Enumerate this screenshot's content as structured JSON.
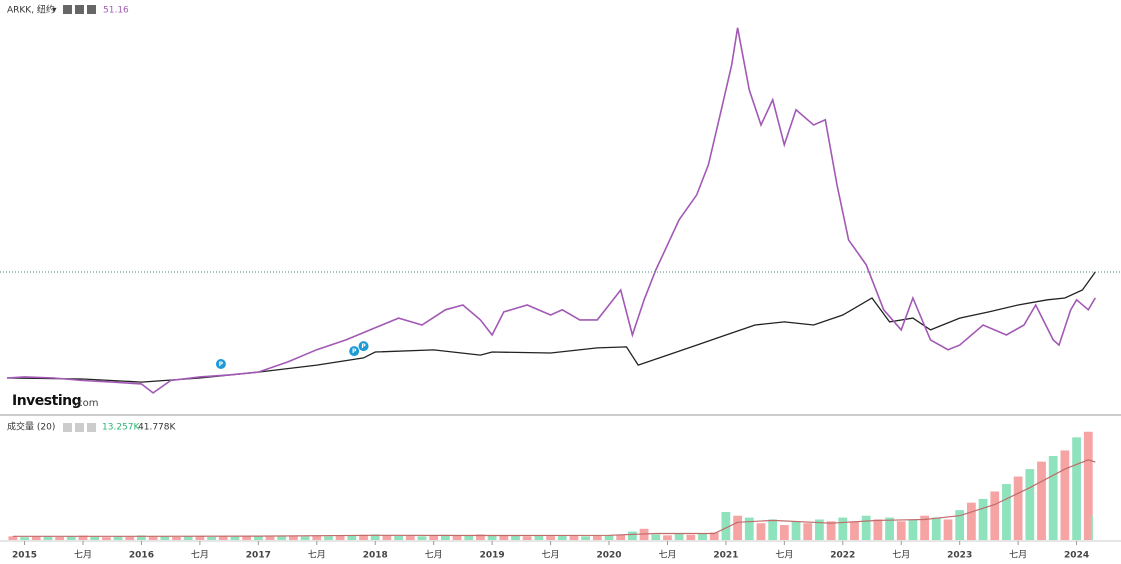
{
  "header": {
    "ticker": "ARKK, 纽约",
    "price": "51.16"
  },
  "logo": {
    "brand": "Investing",
    "suffix": ".com"
  },
  "volume_header": {
    "title": "成交量 (20)",
    "current": "13.257K",
    "average": "41.778K"
  },
  "chart_data": [
    {
      "type": "line",
      "xlim": [
        2014.79,
        2024.38
      ],
      "ylim": [
        5.6,
        167
      ],
      "xticks": [
        2015,
        {
          "value": 2015.5,
          "label": "七月"
        },
        2016,
        {
          "value": 2016.5,
          "label": "七月"
        },
        2017,
        {
          "value": 2017.5,
          "label": "七月"
        },
        2018,
        {
          "value": 2018.5,
          "label": "七月"
        },
        2019,
        {
          "value": 2019.5,
          "label": "七月"
        },
        2020,
        {
          "value": 2020.5,
          "label": "七月"
        },
        2021,
        {
          "value": 2021.5,
          "label": "七月"
        },
        2022,
        {
          "value": 2022.5,
          "label": "七月"
        },
        2023,
        {
          "value": 2023.5,
          "label": "七月"
        },
        2024
      ],
      "last_price_line": true,
      "series": [
        {
          "name": "main",
          "color": "#222222",
          "x": [
            2014.85,
            2015.5,
            2016.0,
            2016.5,
            2017.0,
            2017.5,
            2017.9,
            2018.0,
            2018.5,
            2018.9,
            2019.0,
            2019.5,
            2019.9,
            2020.15,
            2020.25,
            2020.5,
            2020.75,
            2021.0,
            2021.25,
            2021.5,
            2021.75,
            2022.0,
            2022.25,
            2022.4,
            2022.6,
            2022.75,
            2023.0,
            2023.25,
            2023.5,
            2023.75,
            2023.9,
            2024.05,
            2024.16
          ],
          "values": [
            20,
            19.6,
            18.4,
            20,
            22.3,
            25,
            27.8,
            30.1,
            30.9,
            28.9,
            30.1,
            29.7,
            31.7,
            32.1,
            25,
            28.9,
            32.8,
            36.7,
            40.6,
            41.8,
            40.6,
            44.5,
            51.1,
            41.8,
            43.3,
            38.7,
            43.3,
            45.7,
            48.4,
            50.4,
            51.1,
            54.2,
            61.2
          ]
        },
        {
          "name": "ARKK",
          "color": "#a259b5",
          "x": [
            2014.85,
            2015.0,
            2015.25,
            2015.5,
            2015.75,
            2016.0,
            2016.1,
            2016.25,
            2016.5,
            2016.75,
            2017.0,
            2017.25,
            2017.5,
            2017.75,
            2018.0,
            2018.2,
            2018.4,
            2018.6,
            2018.75,
            2018.9,
            2019.0,
            2019.1,
            2019.3,
            2019.5,
            2019.6,
            2019.75,
            2019.9,
            2020.0,
            2020.1,
            2020.2,
            2020.3,
            2020.4,
            2020.5,
            2020.6,
            2020.75,
            2020.85,
            2020.95,
            2021.05,
            2021.1,
            2021.2,
            2021.3,
            2021.4,
            2021.5,
            2021.6,
            2021.75,
            2021.85,
            2021.95,
            2022.05,
            2022.2,
            2022.35,
            2022.5,
            2022.6,
            2022.75,
            2022.9,
            2023.0,
            2023.2,
            2023.4,
            2023.55,
            2023.65,
            2023.8,
            2023.85,
            2023.95,
            2024.0,
            2024.1,
            2024.16
          ],
          "values": [
            20,
            20.4,
            20,
            19,
            18.4,
            17.7,
            14.2,
            19,
            20.4,
            21.2,
            22.3,
            26.2,
            31,
            34.8,
            39.5,
            43.3,
            40.6,
            46.5,
            48.4,
            42.6,
            36.7,
            45.7,
            48.4,
            44.5,
            46.5,
            42.6,
            42.6,
            48.4,
            54.2,
            36.7,
            50.4,
            62,
            71.8,
            81.5,
            91.2,
            102.9,
            122.3,
            141.8,
            156.2,
            132,
            118.4,
            128.2,
            110.7,
            124.3,
            118.4,
            120.4,
            95.1,
            73.7,
            64,
            46.5,
            38.7,
            51.1,
            34.8,
            31,
            32.8,
            40.6,
            36.7,
            40.6,
            48.4,
            34.8,
            32.8,
            46.5,
            50.4,
            46.5,
            51.16
          ]
        }
      ],
      "events": [
        {
          "x": 2016.68,
          "label": "P"
        },
        {
          "x": 2017.82,
          "label": "P"
        },
        {
          "x": 2017.9,
          "label": "P"
        }
      ],
      "event_color": "#1e9bd7"
    },
    {
      "type": "volume",
      "xlim": [
        2014.79,
        2024.38
      ],
      "ylim": [
        0,
        64.3
      ],
      "colors": [
        "#f5a3a3",
        "#8fe3bc"
      ],
      "x": [
        2014.9,
        2015.0,
        2015.1,
        2015.2,
        2015.3,
        2015.4,
        2015.5,
        2015.6,
        2015.7,
        2015.8,
        2015.9,
        2016.0,
        2016.1,
        2016.2,
        2016.3,
        2016.4,
        2016.5,
        2016.6,
        2016.7,
        2016.8,
        2016.9,
        2017.0,
        2017.1,
        2017.2,
        2017.3,
        2017.4,
        2017.5,
        2017.6,
        2017.7,
        2017.8,
        2017.9,
        2018.0,
        2018.1,
        2018.2,
        2018.3,
        2018.4,
        2018.5,
        2018.6,
        2018.7,
        2018.8,
        2018.9,
        2019.0,
        2019.1,
        2019.2,
        2019.3,
        2019.4,
        2019.5,
        2019.6,
        2019.7,
        2019.8,
        2019.9,
        2020.0,
        2020.1,
        2020.2,
        2020.3,
        2020.4,
        2020.5,
        2020.6,
        2020.7,
        2020.8,
        2020.9,
        2021.0,
        2021.1,
        2021.2,
        2021.3,
        2021.4,
        2021.5,
        2021.6,
        2021.7,
        2021.8,
        2021.9,
        2022.0,
        2022.1,
        2022.2,
        2022.3,
        2022.4,
        2022.5,
        2022.6,
        2022.7,
        2022.8,
        2022.9,
        2023.0,
        2023.1,
        2023.2,
        2023.3,
        2023.4,
        2023.5,
        2023.6,
        2023.7,
        2023.8,
        2023.9,
        2024.0,
        2024.1,
        2024.16
      ],
      "values": [
        2,
        1.5,
        1.8,
        2.2,
        1.6,
        2,
        2.4,
        1.8,
        1.5,
        2,
        1.7,
        2.5,
        1.8,
        2,
        1.6,
        1.9,
        2.2,
        1.7,
        2,
        1.8,
        2.1,
        2,
        1.8,
        2.3,
        2,
        1.9,
        2.4,
        2,
        2.6,
        2.2,
        2.8,
        3,
        2.5,
        2.2,
        2.6,
        2,
        2.4,
        2.8,
        2.2,
        2.5,
        3,
        2.6,
        2.2,
        2.4,
        2,
        2.3,
        2.1,
        2.5,
        2.2,
        2,
        2.4,
        2.5,
        2.8,
        4.5,
        6,
        3,
        2.5,
        3.2,
        2.8,
        3.5,
        4,
        15,
        13,
        12,
        9,
        11,
        8,
        10,
        9,
        11,
        10,
        12,
        10,
        13,
        11,
        12,
        10,
        11,
        13,
        12,
        11,
        16,
        20,
        22,
        26,
        30,
        34,
        38,
        42,
        45,
        48,
        55,
        58,
        13.257
      ],
      "ma": {
        "color": "#c06c6c",
        "x": [
          2014.9,
          2016.0,
          2017.0,
          2018.0,
          2019.0,
          2020.0,
          2020.4,
          2020.9,
          2021.1,
          2021.4,
          2021.9,
          2022.3,
          2022.7,
          2023.0,
          2023.3,
          2023.6,
          2023.9,
          2024.1,
          2024.16
        ],
        "values": [
          2,
          2,
          2.1,
          2.5,
          2.4,
          2.5,
          3.5,
          3.5,
          9.5,
          10.5,
          9,
          10.5,
          11,
          13,
          19,
          28,
          38,
          43,
          41.778
        ]
      }
    }
  ]
}
